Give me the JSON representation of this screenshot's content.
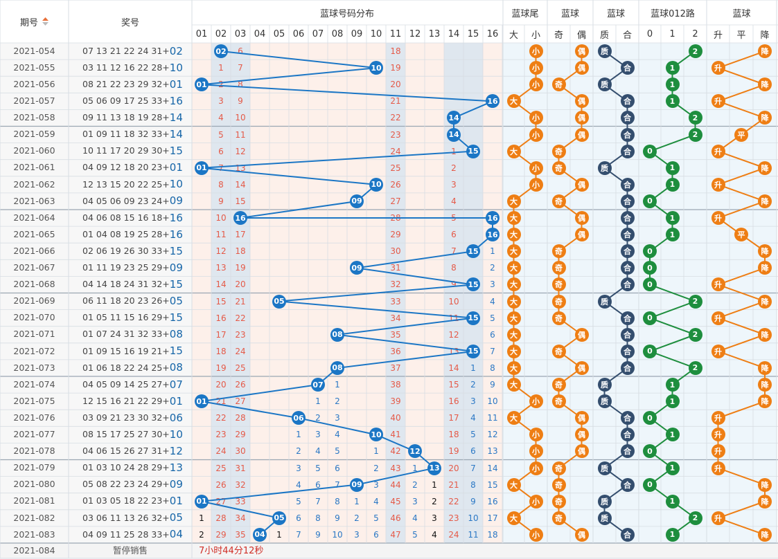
{
  "header": {
    "issue_label": "期号",
    "prize_label": "奖号",
    "dist_label": "蓝球号码分布",
    "groups": [
      "蓝球尾",
      "蓝球",
      "蓝球",
      "蓝球012路",
      "蓝球"
    ],
    "dist_cols": [
      "01",
      "02",
      "03",
      "04",
      "05",
      "06",
      "07",
      "08",
      "09",
      "10",
      "11",
      "12",
      "13",
      "14",
      "15",
      "16"
    ],
    "sub_cols": [
      "大",
      "小",
      "奇",
      "偶",
      "质",
      "合",
      "0",
      "1",
      "2",
      "升",
      "平",
      "降"
    ]
  },
  "colors": {
    "blue_ball": "#1b76c5",
    "orange_ball": "#ee7e14",
    "navy_ball": "#344e6e",
    "green_ball": "#1e8e3e",
    "miss_text": "#e55a48",
    "dist_bg": "#fdf0ea",
    "sub_bg": "#eef6fb",
    "band_bg": "#dfe7ef"
  },
  "rows": [
    {
      "issue": "2021-054",
      "win": "07 13 21 22 24 31+",
      "blue": "02",
      "d": [
        "",
        "02",
        "6",
        "",
        "",
        "",
        "",
        "",
        "",
        "",
        "18",
        "",
        "",
        "",
        "",
        ""
      ],
      "sz": "small",
      "oe": "even",
      "pc": "prime",
      "r": "2",
      "t": "降",
      "s": []
    },
    {
      "issue": "2021-055",
      "win": "03 11 12 16 22 28+",
      "blue": "10",
      "d": [
        "",
        "1",
        "7",
        "",
        "",
        "",
        "",
        "",
        "",
        "10",
        "19",
        "",
        "",
        "",
        "",
        ""
      ],
      "sz": "small",
      "oe": "even",
      "pc": "comp",
      "r": "1",
      "t": "升",
      "s": []
    },
    {
      "issue": "2021-056",
      "win": "08 21 22 23 29 32+",
      "blue": "01",
      "d": [
        "01",
        "2",
        "8",
        "",
        "",
        "",
        "",
        "",
        "",
        "",
        "20",
        "",
        "",
        "",
        "",
        ""
      ],
      "sz": "small",
      "oe": "odd",
      "pc": "prime",
      "r": "1",
      "t": "降",
      "s": []
    },
    {
      "issue": "2021-057",
      "win": "05 06 09 17 25 33+",
      "blue": "16",
      "d": [
        "",
        "3",
        "9",
        "",
        "",
        "",
        "",
        "",
        "",
        "",
        "21",
        "",
        "",
        "",
        "",
        "16"
      ],
      "sz": "big",
      "oe": "even",
      "pc": "comp",
      "r": "1",
      "t": "升",
      "s": []
    },
    {
      "issue": "2021-058",
      "win": "09 11 13 18 19 28+",
      "blue": "14",
      "d": [
        "",
        "4",
        "10",
        "",
        "",
        "",
        "",
        "",
        "",
        "",
        "22",
        "",
        "",
        "14",
        "",
        ""
      ],
      "sz": "small",
      "oe": "even",
      "pc": "comp",
      "r": "2",
      "t": "降",
      "s": []
    },
    {
      "issue": "2021-059",
      "win": "01 09 11 18 32 33+",
      "blue": "14",
      "d": [
        "",
        "5",
        "11",
        "",
        "",
        "",
        "",
        "",
        "",
        "",
        "23",
        "",
        "",
        "14",
        "",
        ""
      ],
      "sz": "small",
      "oe": "even",
      "pc": "comp",
      "r": "2",
      "t": "平",
      "s": []
    },
    {
      "issue": "2021-060",
      "win": "10 11 17 20 29 30+",
      "blue": "15",
      "d": [
        "",
        "6",
        "12",
        "",
        "",
        "",
        "",
        "",
        "",
        "",
        "24",
        "",
        "",
        "1",
        "15",
        ""
      ],
      "sz": "big",
      "oe": "odd",
      "pc": "comp",
      "r": "0",
      "t": "升",
      "s": []
    },
    {
      "issue": "2021-061",
      "win": "04 09 12 18 20 23+",
      "blue": "01",
      "d": [
        "01",
        "7",
        "13",
        "",
        "",
        "",
        "",
        "",
        "",
        "",
        "25",
        "",
        "",
        "2",
        "",
        ""
      ],
      "sz": "small",
      "oe": "odd",
      "pc": "prime",
      "r": "1",
      "t": "降",
      "s": []
    },
    {
      "issue": "2021-062",
      "win": "12 13 15 20 22 25+",
      "blue": "10",
      "d": [
        "",
        "8",
        "14",
        "",
        "",
        "",
        "",
        "",
        "",
        "10",
        "26",
        "",
        "",
        "3",
        "",
        ""
      ],
      "sz": "small",
      "oe": "even",
      "pc": "comp",
      "r": "1",
      "t": "升",
      "s": []
    },
    {
      "issue": "2021-063",
      "win": "04 05 06 09 23 24+",
      "blue": "09",
      "d": [
        "",
        "9",
        "15",
        "",
        "",
        "",
        "",
        "",
        "09",
        "",
        "27",
        "",
        "",
        "4",
        "",
        ""
      ],
      "sz": "big",
      "oe": "odd",
      "pc": "comp",
      "r": "0",
      "t": "降",
      "s": []
    },
    {
      "issue": "2021-064",
      "win": "04 06 08 15 16 18+",
      "blue": "16",
      "d": [
        "",
        "10",
        "16",
        "",
        "",
        "",
        "",
        "",
        "",
        "",
        "28",
        "",
        "",
        "5",
        "",
        "16"
      ],
      "sz": "big",
      "oe": "even",
      "pc": "comp",
      "r": "1",
      "t": "升",
      "s": []
    },
    {
      "issue": "2021-065",
      "win": "01 04 08 19 25 28+",
      "blue": "16",
      "d": [
        "",
        "11",
        "17",
        "",
        "",
        "",
        "",
        "",
        "",
        "",
        "29",
        "",
        "",
        "6",
        "",
        "16"
      ],
      "sz": "big",
      "oe": "even",
      "pc": "comp",
      "r": "1",
      "t": "平",
      "s": []
    },
    {
      "issue": "2021-066",
      "win": "02 06 19 26 30 33+",
      "blue": "15",
      "d": [
        "",
        "12",
        "18",
        "",
        "",
        "",
        "",
        "",
        "",
        "",
        "30",
        "",
        "",
        "7",
        "15",
        "1"
      ],
      "sz": "big",
      "oe": "odd",
      "pc": "comp",
      "r": "0",
      "t": "降",
      "s": [
        "1"
      ]
    },
    {
      "issue": "2021-067",
      "win": "01 11 19 23 25 29+",
      "blue": "09",
      "d": [
        "",
        "13",
        "19",
        "",
        "",
        "",
        "",
        "",
        "09",
        "",
        "31",
        "",
        "",
        "8",
        "",
        "2"
      ],
      "sz": "big",
      "oe": "odd",
      "pc": "comp",
      "r": "0",
      "t": "降",
      "s": [
        "2"
      ]
    },
    {
      "issue": "2021-068",
      "win": "04 14 18 24 31 32+",
      "blue": "15",
      "d": [
        "",
        "14",
        "20",
        "",
        "",
        "",
        "",
        "",
        "",
        "",
        "32",
        "",
        "",
        "9",
        "15",
        "3"
      ],
      "sz": "big",
      "oe": "odd",
      "pc": "comp",
      "r": "0",
      "t": "升",
      "s": [
        "3"
      ]
    },
    {
      "issue": "2021-069",
      "win": "06 11 18 20 23 26+",
      "blue": "05",
      "d": [
        "",
        "15",
        "21",
        "",
        "05",
        "",
        "",
        "",
        "",
        "",
        "33",
        "",
        "",
        "10",
        "",
        "4"
      ],
      "sz": "big",
      "oe": "odd",
      "pc": "prime",
      "r": "2",
      "t": "降",
      "s": [
        "4"
      ]
    },
    {
      "issue": "2021-070",
      "win": "01 05 11 15 16 29+",
      "blue": "15",
      "d": [
        "",
        "16",
        "22",
        "",
        "",
        "",
        "",
        "",
        "",
        "",
        "34",
        "",
        "",
        "11",
        "15",
        "5"
      ],
      "sz": "big",
      "oe": "odd",
      "pc": "comp",
      "r": "0",
      "t": "升",
      "s": [
        "5"
      ]
    },
    {
      "issue": "2021-071",
      "win": "01 07 24 31 32 33+",
      "blue": "08",
      "d": [
        "",
        "17",
        "23",
        "",
        "",
        "",
        "",
        "08",
        "",
        "",
        "35",
        "",
        "",
        "12",
        "",
        "6"
      ],
      "sz": "big",
      "oe": "even",
      "pc": "comp",
      "r": "2",
      "t": "降",
      "s": [
        "6"
      ]
    },
    {
      "issue": "2021-072",
      "win": "01 09 15 16 19 21+",
      "blue": "15",
      "d": [
        "",
        "18",
        "24",
        "",
        "",
        "",
        "",
        "",
        "",
        "",
        "36",
        "",
        "",
        "13",
        "15",
        "7"
      ],
      "sz": "big",
      "oe": "odd",
      "pc": "comp",
      "r": "0",
      "t": "升",
      "s": [
        "7"
      ]
    },
    {
      "issue": "2021-073",
      "win": "01 06 18 22 24 25+",
      "blue": "08",
      "d": [
        "",
        "19",
        "25",
        "",
        "",
        "",
        "",
        "08",
        "",
        "",
        "37",
        "",
        "",
        "14",
        "1",
        "8"
      ],
      "sz": "big",
      "oe": "even",
      "pc": "comp",
      "r": "2",
      "t": "降",
      "s": [
        "8"
      ]
    },
    {
      "issue": "2021-074",
      "win": "04 05 09 14 25 27+",
      "blue": "07",
      "d": [
        "",
        "20",
        "26",
        "",
        "",
        "",
        "07",
        "1",
        "",
        "",
        "38",
        "",
        "",
        "15",
        "2",
        "9"
      ],
      "sz": "big",
      "oe": "odd",
      "pc": "prime",
      "r": "1",
      "t": "降",
      "s": [
        "9"
      ]
    },
    {
      "issue": "2021-075",
      "win": "12 15 16 21 22 29+",
      "blue": "01",
      "d": [
        "01",
        "21",
        "27",
        "",
        "",
        "",
        "1",
        "2",
        "",
        "",
        "39",
        "",
        "",
        "16",
        "3",
        "10"
      ],
      "sz": "small",
      "oe": "odd",
      "pc": "prime",
      "r": "1",
      "t": "降",
      "s": [
        "10"
      ]
    },
    {
      "issue": "2021-076",
      "win": "03 09 21 23 30 32+",
      "blue": "06",
      "d": [
        "",
        "22",
        "28",
        "",
        "",
        "06",
        "2",
        "3",
        "",
        "",
        "40",
        "",
        "",
        "17",
        "4",
        "11"
      ],
      "sz": "big",
      "oe": "even",
      "pc": "comp",
      "r": "0",
      "t": "升",
      "s": [
        "11"
      ]
    },
    {
      "issue": "2021-077",
      "win": "08 15 17 25 27 30+",
      "blue": "10",
      "d": [
        "",
        "23",
        "29",
        "",
        "",
        "1",
        "3",
        "4",
        "",
        "10",
        "41",
        "",
        "",
        "18",
        "5",
        "12"
      ],
      "sz": "small",
      "oe": "even",
      "pc": "comp",
      "r": "1",
      "t": "升",
      "s": [
        "12"
      ]
    },
    {
      "issue": "2021-078",
      "win": "04 06 15 26 27 31+",
      "blue": "12",
      "d": [
        "",
        "24",
        "30",
        "",
        "",
        "2",
        "4",
        "5",
        "",
        "1",
        "42",
        "12",
        "",
        "19",
        "6",
        "13"
      ],
      "sz": "small",
      "oe": "even",
      "pc": "comp",
      "r": "0",
      "t": "升",
      "s": [
        "13"
      ]
    },
    {
      "issue": "2021-079",
      "win": "01 03 10 24 28 29+",
      "blue": "13",
      "d": [
        "",
        "25",
        "31",
        "",
        "",
        "3",
        "5",
        "6",
        "",
        "2",
        "43",
        "1",
        "13",
        "20",
        "7",
        "14"
      ],
      "sz": "small",
      "oe": "odd",
      "pc": "prime",
      "r": "1",
      "t": "升",
      "s": [
        "14"
      ]
    },
    {
      "issue": "2021-080",
      "win": "05 08 22 23 24 29+",
      "blue": "09",
      "d": [
        "",
        "26",
        "32",
        "",
        "",
        "4",
        "6",
        "7",
        "09",
        "3",
        "44",
        "2",
        "1",
        "21",
        "8",
        "15"
      ],
      "sz": "big",
      "oe": "odd",
      "pc": "comp",
      "r": "0",
      "t": "降",
      "s": [
        "15"
      ]
    },
    {
      "issue": "2021-081",
      "win": "01 03 05 18 22 23+",
      "blue": "01",
      "d": [
        "01",
        "27",
        "33",
        "",
        "",
        "5",
        "7",
        "8",
        "1",
        "4",
        "45",
        "3",
        "2",
        "22",
        "9",
        "16"
      ],
      "sz": "small",
      "oe": "odd",
      "pc": "prime",
      "r": "1",
      "t": "降",
      "s": [
        "1",
        "16"
      ]
    },
    {
      "issue": "2021-082",
      "win": "03 06 11 13 26 32+",
      "blue": "05",
      "d": [
        "1",
        "28",
        "34",
        "",
        "05",
        "6",
        "8",
        "9",
        "2",
        "5",
        "46",
        "4",
        "3",
        "23",
        "10",
        "17"
      ],
      "sz": "big",
      "oe": "odd",
      "pc": "prime",
      "r": "2",
      "t": "升",
      "s": [
        "2",
        "17"
      ]
    },
    {
      "issue": "2021-083",
      "win": "04 09 11 25 28 33+",
      "blue": "04",
      "d": [
        "2",
        "29",
        "35",
        "04",
        "1",
        "7",
        "9",
        "10",
        "3",
        "6",
        "47",
        "5",
        "4",
        "24",
        "11",
        "18"
      ],
      "sz": "small",
      "oe": "even",
      "pc": "comp",
      "r": "1",
      "t": "降",
      "s": [
        "1",
        "1",
        "3",
        "1",
        "1",
        "18"
      ]
    }
  ],
  "footer": {
    "issue": "2021-084",
    "status": "暂停销售",
    "countdown": "7小时44分12秒"
  }
}
